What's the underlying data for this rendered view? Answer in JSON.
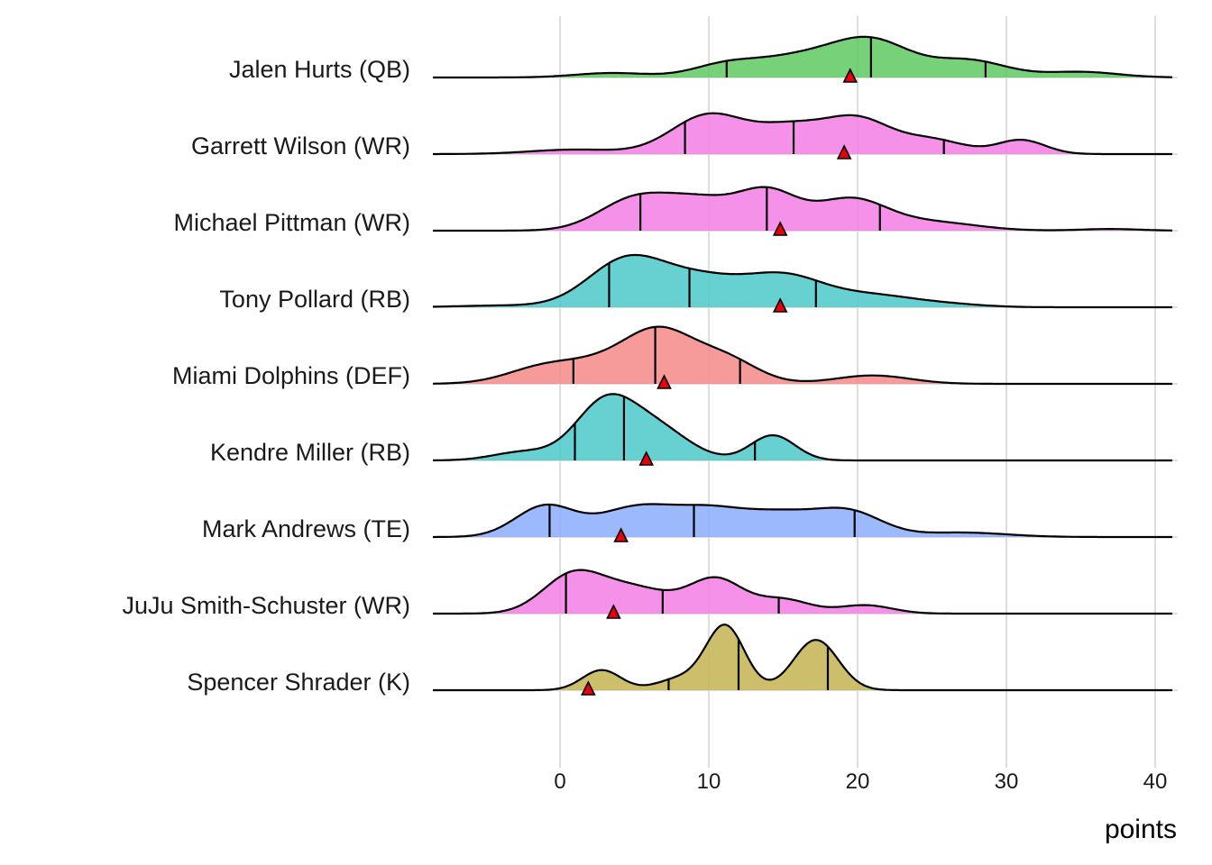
{
  "chart_data": {
    "type": "ridgeline-density",
    "title": "",
    "xlabel": "points",
    "ylabel": "",
    "xlim": [
      -8.5,
      41.5
    ],
    "x_ticks": [
      0,
      10,
      20,
      30,
      40
    ],
    "x_tick_labels": [
      "0",
      "10",
      "20",
      "30",
      "40"
    ],
    "grid": true,
    "legend": "none",
    "quantile_lines": [
      0.25,
      0.5,
      0.75
    ],
    "marker": {
      "shape": "triangle",
      "color": "#e8000b",
      "meaning": "projection"
    },
    "series": [
      {
        "name": "Jalen Hurts (QB)",
        "color": "#5ec962",
        "quantiles": [
          11.2,
          20.9,
          28.6
        ],
        "marker_x": 19.5,
        "components": [
          [
            3.5,
            0.08,
            2.5
          ],
          [
            11,
            0.2,
            2.2
          ],
          [
            16,
            0.35,
            3
          ],
          [
            21,
            0.62,
            2.6
          ],
          [
            27.5,
            0.3,
            2.5
          ],
          [
            35,
            0.1,
            2.5
          ]
        ]
      },
      {
        "name": "Garrett Wilson (WR)",
        "color": "#f37ee4",
        "quantiles": [
          8.4,
          15.7,
          25.8
        ],
        "marker_x": 19.1,
        "components": [
          [
            1,
            0.08,
            3
          ],
          [
            10,
            0.7,
            2.5
          ],
          [
            15.5,
            0.45,
            2.3
          ],
          [
            20,
            0.6,
            2.2
          ],
          [
            25,
            0.25,
            2.2
          ],
          [
            31,
            0.25,
            1.6
          ]
        ]
      },
      {
        "name": "Michael Pittman (WR)",
        "color": "#f37ee4",
        "quantiles": [
          5.4,
          13.9,
          21.5
        ],
        "marker_x": 14.8,
        "components": [
          [
            5,
            0.55,
            2.4
          ],
          [
            9.5,
            0.5,
            2.4
          ],
          [
            14,
            0.65,
            2
          ],
          [
            19.5,
            0.55,
            2.4
          ],
          [
            25,
            0.15,
            3
          ],
          [
            37,
            0.03,
            2
          ]
        ]
      },
      {
        "name": "Tony Pollard (RB)",
        "color": "#4cc8c8",
        "quantiles": [
          3.3,
          8.7,
          17.2
        ],
        "marker_x": 14.8,
        "components": [
          [
            -4,
            0.03,
            3
          ],
          [
            4.5,
            0.85,
            2.6
          ],
          [
            9.5,
            0.45,
            2.6
          ],
          [
            15,
            0.55,
            2.7
          ],
          [
            21,
            0.2,
            2.8
          ],
          [
            26,
            0.05,
            2.5
          ]
        ]
      },
      {
        "name": "Miami Dolphins (DEF)",
        "color": "#f48888",
        "quantiles": [
          0.9,
          6.4,
          12.1
        ],
        "marker_x": 7.0,
        "components": [
          [
            -1,
            0.3,
            2.5
          ],
          [
            3.5,
            0.35,
            2.5
          ],
          [
            6.8,
            0.8,
            2.2
          ],
          [
            11,
            0.45,
            2.2
          ],
          [
            21,
            0.15,
            2.5
          ]
        ]
      },
      {
        "name": "Kendre Miller (RB)",
        "color": "#4cc8c8",
        "quantiles": [
          1.0,
          4.3,
          13.1
        ],
        "marker_x": 5.8,
        "components": [
          [
            -2.5,
            0.15,
            2
          ],
          [
            3,
            1.0,
            2
          ],
          [
            6.5,
            0.55,
            2.2
          ],
          [
            14.3,
            0.45,
            1.5
          ]
        ]
      },
      {
        "name": "Mark Andrews (TE)",
        "color": "#8aadfb",
        "quantiles": [
          -0.7,
          9.0,
          19.8
        ],
        "marker_x": 4.1,
        "components": [
          [
            -1,
            0.55,
            2
          ],
          [
            5,
            0.5,
            2.5
          ],
          [
            10,
            0.45,
            2.5
          ],
          [
            15,
            0.38,
            2.5
          ],
          [
            19.5,
            0.42,
            2.2
          ],
          [
            27,
            0.08,
            3
          ]
        ]
      },
      {
        "name": "JuJu Smith-Schuster (WR)",
        "color": "#f37ee4",
        "quantiles": [
          0.4,
          6.9,
          14.7
        ],
        "marker_x": 3.6,
        "components": [
          [
            0.8,
            0.65,
            2
          ],
          [
            5,
            0.45,
            2.5
          ],
          [
            10.5,
            0.6,
            1.8
          ],
          [
            15,
            0.25,
            1.8
          ],
          [
            20.5,
            0.15,
            1.8
          ]
        ]
      },
      {
        "name": "Spencer Shrader (K)",
        "color": "#c4b352",
        "quantiles": [
          7.3,
          12.0,
          18.0
        ],
        "marker_x": 1.9,
        "components": [
          [
            2.8,
            0.36,
            1.3
          ],
          [
            8,
            0.2,
            1.5
          ],
          [
            11.1,
            1.15,
            1.3
          ],
          [
            17.2,
            0.9,
            1.5
          ]
        ]
      }
    ]
  }
}
